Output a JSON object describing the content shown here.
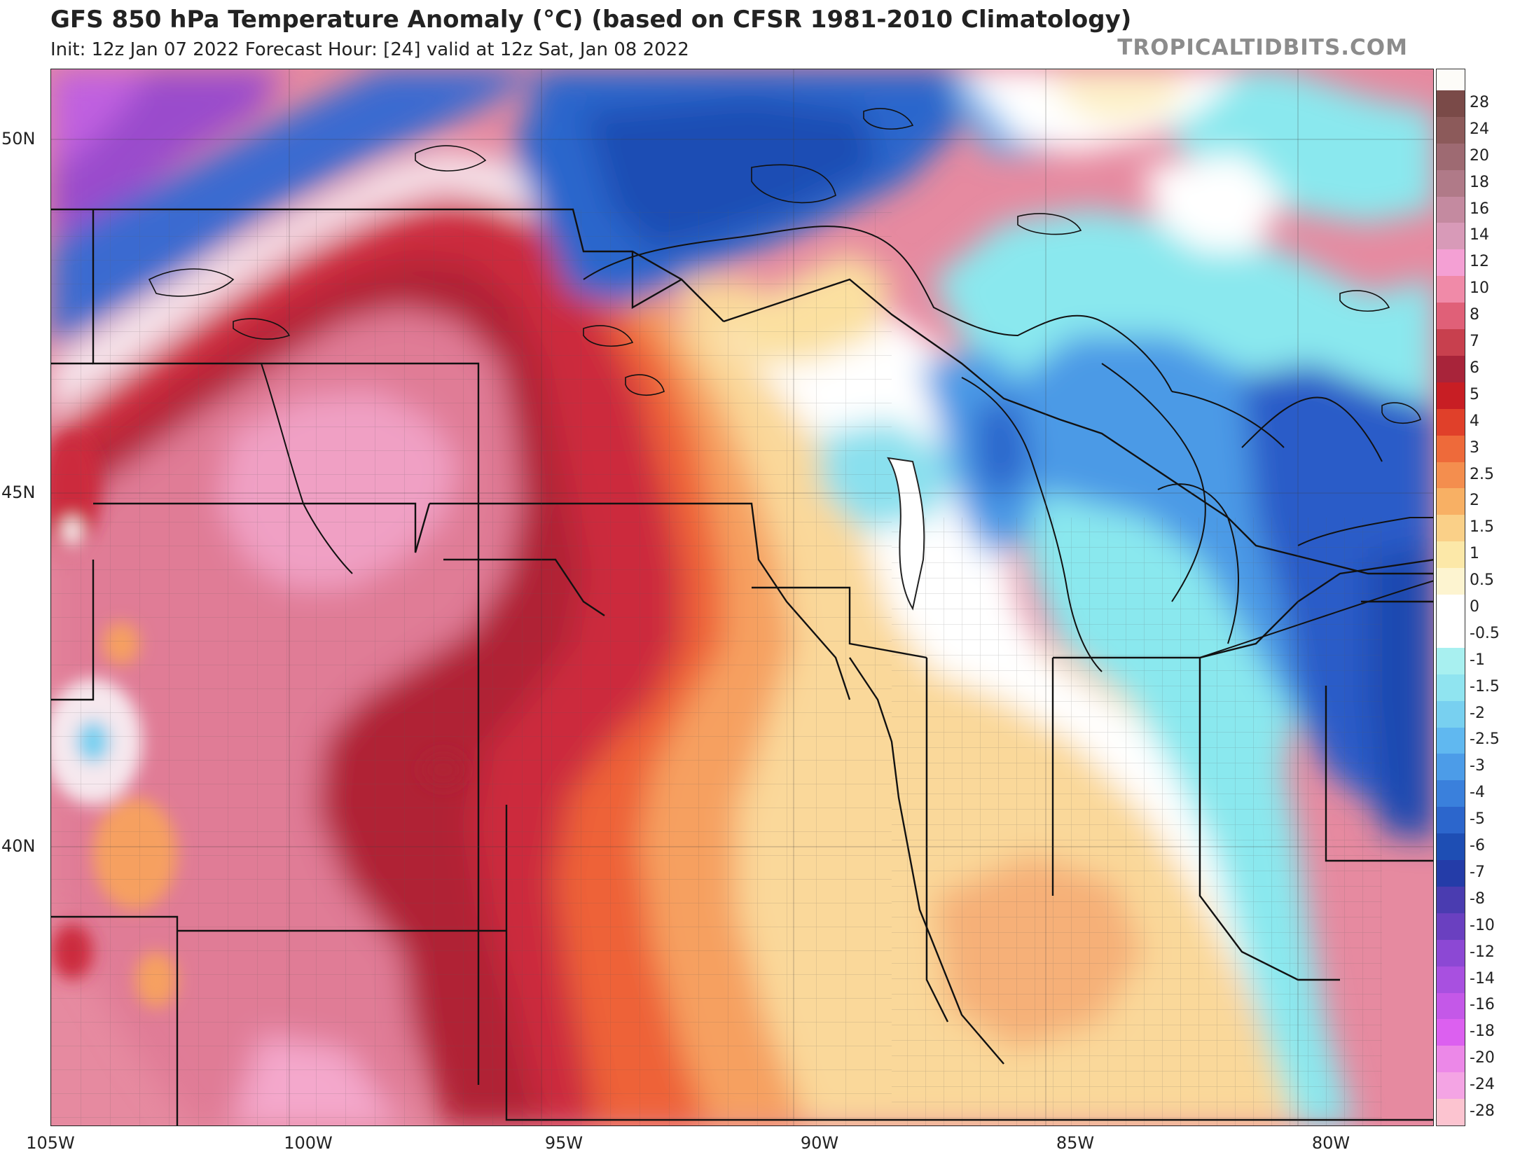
{
  "header": {
    "title": "GFS 850 hPa Temperature Anomaly (°C) (based on CFSR 1981-2010 Climatology)",
    "subtitle": "Init: 12z Jan 07 2022   Forecast Hour: [24]   valid at 12z Sat, Jan 08 2022",
    "brand": "TROPICALTIDBITS.COM"
  },
  "map": {
    "lat_labels": [
      "50N",
      "45N",
      "40N"
    ],
    "lon_labels": [
      "105W",
      "100W",
      "95W",
      "90W",
      "85W",
      "80W"
    ]
  },
  "colorbar": {
    "labels": [
      "28",
      "24",
      "20",
      "18",
      "16",
      "14",
      "12",
      "10",
      "8",
      "7",
      "6",
      "5",
      "4",
      "3",
      "2.5",
      "2",
      "1.5",
      "1",
      "0.5",
      "0",
      "-0.5",
      "-1",
      "-1.5",
      "-2",
      "-2.5",
      "-3",
      "-4",
      "-5",
      "-6",
      "-7",
      "-8",
      "-10",
      "-12",
      "-14",
      "-16",
      "-18",
      "-20",
      "-24",
      "-28"
    ],
    "colors": [
      "#7a4a48",
      "#8c5a5a",
      "#9e6a72",
      "#b07a88",
      "#c48aa0",
      "#d89ab8",
      "#f4a0d4",
      "#f08aa8",
      "#e06078",
      "#c8404e",
      "#a8243a",
      "#c81e24",
      "#e0402a",
      "#ee6a3a",
      "#f48e4e",
      "#f8b064",
      "#fad088",
      "#fce8a8",
      "#fdf4d0",
      "#ffffff",
      "#ffffff",
      "#a8f0f0",
      "#90e4f0",
      "#78d0f0",
      "#60b8f0",
      "#4c9ce8",
      "#3a80dc",
      "#2c66cc",
      "#1e4eb4",
      "#243ca8",
      "#4a3cb0",
      "#6a40c0",
      "#8c48d4",
      "#a850e0",
      "#c458e8",
      "#dc60f0",
      "#ec88e8",
      "#f4a4e4",
      "#fcc4d0"
    ],
    "background": "#fdfcf8"
  }
}
